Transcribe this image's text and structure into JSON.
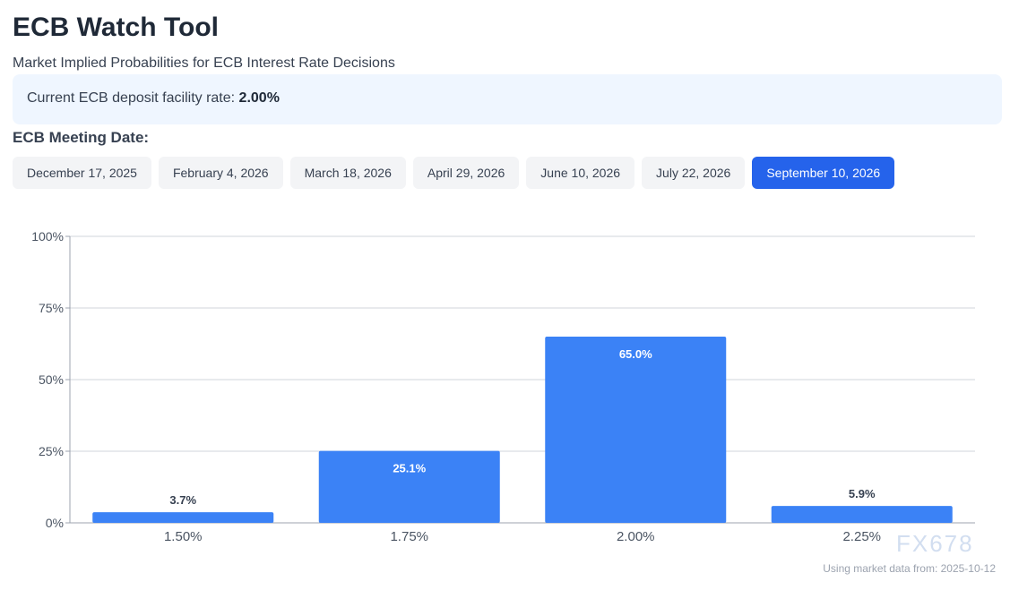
{
  "title": "ECB Watch Tool",
  "subtitle": "Market Implied Probabilities for ECB Interest Rate Decisions",
  "current_rate": {
    "label": "Current ECB deposit facility rate:",
    "value": "2.00%"
  },
  "meeting_label": "ECB Meeting Date:",
  "meetings": [
    "December 17, 2025",
    "February 4, 2026",
    "March 18, 2026",
    "April 29, 2026",
    "June 10, 2026",
    "July 22, 2026",
    "September 10, 2026"
  ],
  "selected_meeting": "September 10, 2026",
  "accent_color": "#2563eb",
  "bar_color": "#3b82f6",
  "chart_data": {
    "type": "bar",
    "categories": [
      "1.50%",
      "1.75%",
      "2.00%",
      "2.25%"
    ],
    "values": [
      3.7,
      25.1,
      65.0,
      5.9
    ],
    "data_labels": [
      "3.7%",
      "25.1%",
      "65.0%",
      "5.9%"
    ],
    "ylim": [
      0,
      100
    ],
    "yticks": [
      "0%",
      "25%",
      "50%",
      "75%",
      "100%"
    ],
    "grid": true
  },
  "footer": "Using market data from: 2025-10-12",
  "watermark": "FX678"
}
